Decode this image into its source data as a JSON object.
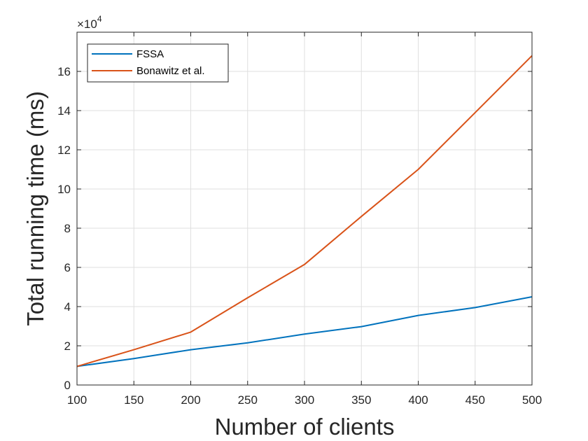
{
  "chart_data": {
    "type": "line",
    "title": "",
    "xlabel": "Number of clients",
    "ylabel": "Total running time (ms)",
    "x": [
      100,
      150,
      200,
      250,
      300,
      350,
      400,
      450,
      500
    ],
    "xlim": [
      100,
      500
    ],
    "ylim": [
      0,
      180000
    ],
    "xticks": [
      100,
      150,
      200,
      250,
      300,
      350,
      400,
      450,
      500
    ],
    "yticks": [
      0,
      20000,
      40000,
      60000,
      80000,
      100000,
      120000,
      140000,
      160000
    ],
    "ytick_labels": [
      "0",
      "2",
      "4",
      "6",
      "8",
      "10",
      "12",
      "14",
      "16"
    ],
    "y_exponent_base": "×10",
    "y_exponent_power": "4",
    "grid": true,
    "legend_position": "top-left",
    "series": [
      {
        "name": "FSSA",
        "color": "#0072BD",
        "values": [
          9500,
          13500,
          18000,
          21500,
          26000,
          29800,
          35500,
          39500,
          45000
        ]
      },
      {
        "name": "Bonawitz et al.",
        "color": "#D95319",
        "values": [
          9500,
          18000,
          27000,
          44500,
          61500,
          86000,
          110000,
          139000,
          168000
        ]
      }
    ]
  }
}
